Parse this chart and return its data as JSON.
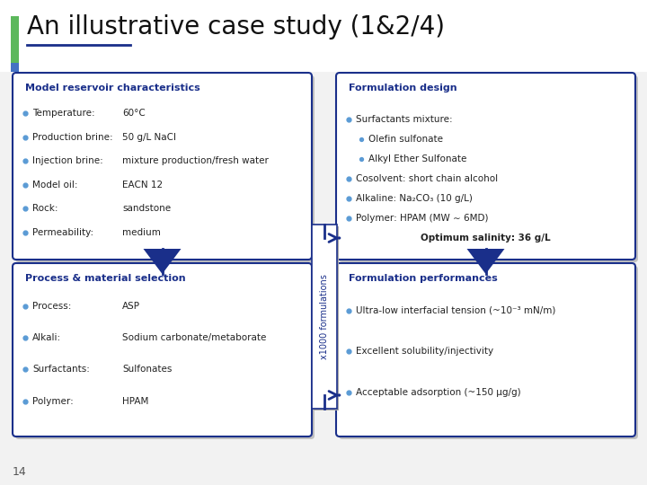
{
  "title": "An illustrative case study (1&2/4)",
  "title_fontsize": 20,
  "slide_bg": "#f2f2f2",
  "box_border": "#1a2f8a",
  "header_color": "#1a2f8a",
  "text_color": "#222222",
  "bullet_color": "#5b9bd5",
  "arrow_color": "#1a2f8a",
  "page_num": "14",
  "top_left_box": {
    "title": "Model reservoir characteristics",
    "bullets": [
      [
        "Temperature:",
        "60°C"
      ],
      [
        "Production brine:",
        "50 g/L NaCl"
      ],
      [
        "Injection brine:",
        "mixture production/fresh water"
      ],
      [
        "Model oil:",
        "EACN 12"
      ],
      [
        "Rock:",
        "sandstone"
      ],
      [
        "Permeability:",
        "medium"
      ]
    ]
  },
  "top_right_box": {
    "title": "Formulation design",
    "content": [
      {
        "type": "bullet1",
        "text": "Surfactants mixture:"
      },
      {
        "type": "bullet2",
        "text": "Olefin sulfonate"
      },
      {
        "type": "bullet2",
        "text": "Alkyl Ether Sulfonate"
      },
      {
        "type": "bullet1",
        "text": "Cosolvent: short chain alcohol"
      },
      {
        "type": "bullet1",
        "text": "Alkaline: Na₂CO₃ (10 g/L)"
      },
      {
        "type": "bullet1",
        "text": "Polymer: HPAM (MW ∼ 6MD)"
      },
      {
        "type": "bold",
        "text": "Optimum salinity: 36 g/L"
      }
    ]
  },
  "bottom_left_box": {
    "title": "Process & material selection",
    "bullets": [
      [
        "Process:",
        "ASP"
      ],
      [
        "Alkali:",
        "Sodium carbonate/metaborate"
      ],
      [
        "Surfactants:",
        "Sulfonates"
      ],
      [
        "Polymer:",
        "HPAM"
      ]
    ]
  },
  "bottom_right_box": {
    "title": "Formulation performances",
    "bullets": [
      "Ultra-low interfacial tension (~10⁻³ mN/m)",
      "Excellent solubility/injectivity",
      "Acceptable adsorption (~150 μg/g)"
    ]
  },
  "center_label": "x1000 formulations"
}
